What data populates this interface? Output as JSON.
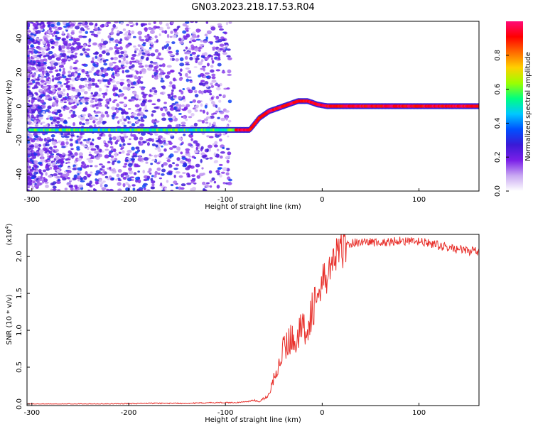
{
  "title": "GN03.2023.218.17.53.R04",
  "colors": {
    "snr_line": "#e8302b",
    "colormap": [
      "#ffffff",
      "#c9a8f2",
      "#7a1fe8",
      "#3a1ad6",
      "#0050ff",
      "#00c8ff",
      "#00ff80",
      "#9cff00",
      "#ffd000",
      "#ff6a00",
      "#ff0000",
      "#ff0a78"
    ]
  },
  "chart_data": [
    {
      "type": "heatmap",
      "xlabel": "Height of straight line (km)",
      "ylabel": "Frequency (Hz)",
      "xlim": [
        -305,
        162
      ],
      "ylim": [
        -50,
        50
      ],
      "xticks": [
        -300,
        -200,
        -100,
        0,
        100
      ],
      "yticks": [
        40,
        20,
        0,
        -20,
        -40
      ],
      "xtick_labels": [
        "-300",
        "-200",
        "-100",
        "0",
        "100"
      ],
      "ytick_labels": [
        "40",
        "20",
        "0",
        "-20",
        "-40"
      ],
      "colorbar": {
        "label": "Normalized spectral amplitude",
        "range": [
          0,
          1
        ],
        "ticks": [
          0.0,
          0.2,
          0.4,
          0.6,
          0.8
        ],
        "tick_labels": [
          "0.0",
          "0.2",
          "0.4",
          "0.6",
          "0.8"
        ]
      },
      "ridge": {
        "x": [
          -305,
          -75,
          -65,
          -55,
          -45,
          -35,
          -25,
          -15,
          -5,
          5,
          15,
          162
        ],
        "frequency": [
          -14,
          -14,
          -7,
          -3,
          -1,
          1,
          3,
          3,
          1,
          0,
          0,
          0
        ]
      },
      "grid": false
    },
    {
      "type": "line",
      "xlabel": "Height of straight line (km)",
      "ylabel": "SNR (10 * v/v)",
      "yscale_label": "(x10",
      "yscale_exp": "4",
      "xlim": [
        -305,
        162
      ],
      "ylim": [
        -0.02,
        2.3
      ],
      "xticks": [
        -300,
        -200,
        -100,
        0,
        100
      ],
      "yticks": [
        0.0,
        0.5,
        1.0,
        1.5,
        2.0
      ],
      "xtick_labels": [
        "-300",
        "-200",
        "-100",
        "0",
        "100"
      ],
      "ytick_labels": [
        "0.0",
        "0.5",
        "1.0",
        "1.5",
        "2.0"
      ],
      "series": [
        {
          "x": [
            -305,
            -260,
            -220,
            -180,
            -140,
            -110,
            -90,
            -80,
            -75,
            -70,
            -65,
            -60,
            -55,
            -50,
            -45,
            -40,
            -35,
            -30,
            -25,
            -20,
            -15,
            -10,
            -5,
            0,
            5,
            10,
            15,
            20,
            25,
            30,
            40,
            50,
            60,
            70,
            80,
            90,
            100,
            110,
            120,
            130,
            140,
            150,
            162
          ],
          "y": [
            0.0,
            0.0,
            0.0,
            0.01,
            0.01,
            0.02,
            0.02,
            0.03,
            0.04,
            0.05,
            0.03,
            0.08,
            0.12,
            0.35,
            0.55,
            0.75,
            0.85,
            0.9,
            0.95,
            1.0,
            1.1,
            1.3,
            1.45,
            1.6,
            1.75,
            1.9,
            2.0,
            2.1,
            2.15,
            2.18,
            2.2,
            2.2,
            2.18,
            2.2,
            2.22,
            2.2,
            2.2,
            2.18,
            2.15,
            2.12,
            2.1,
            2.08,
            2.06
          ]
        }
      ],
      "grid": false
    }
  ]
}
